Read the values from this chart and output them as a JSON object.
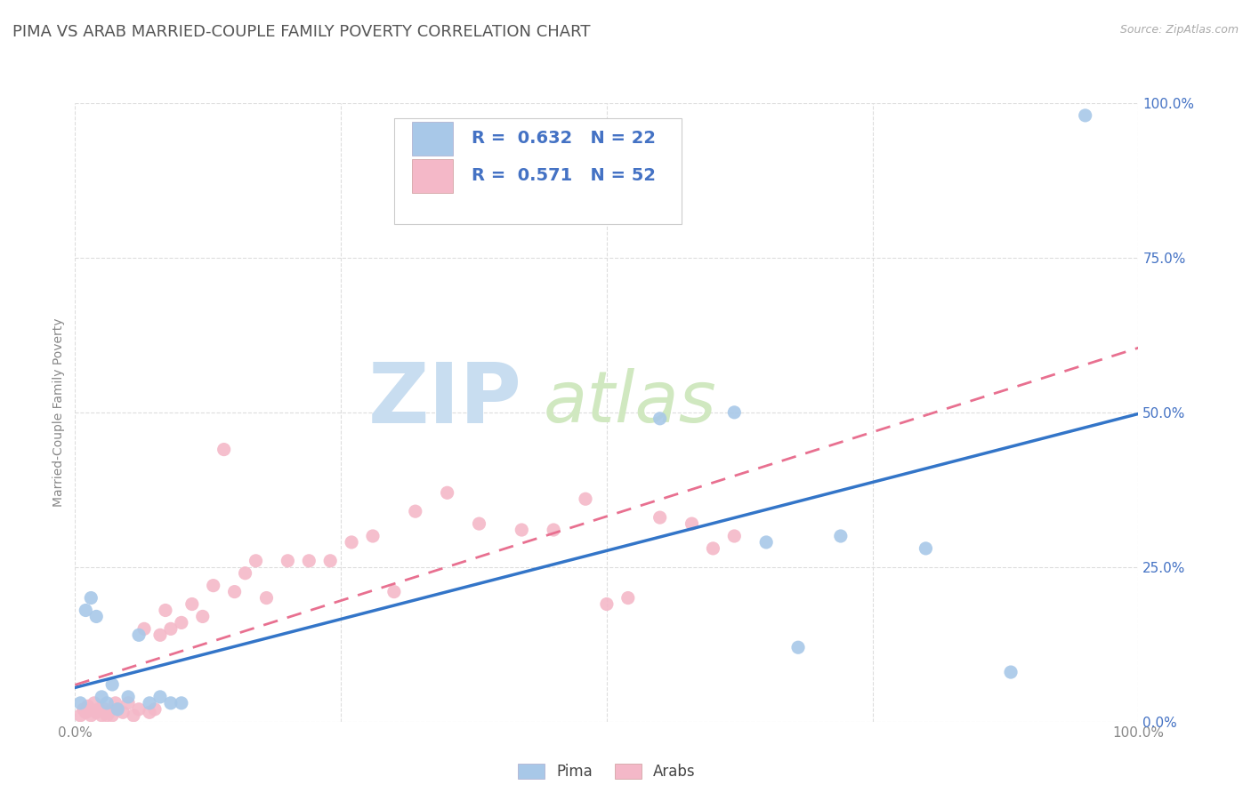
{
  "title": "PIMA VS ARAB MARRIED-COUPLE FAMILY POVERTY CORRELATION CHART",
  "source_text": "Source: ZipAtlas.com",
  "ylabel": "Married-Couple Family Poverty",
  "xlim": [
    0,
    1
  ],
  "ylim": [
    0,
    1
  ],
  "ytick_positions": [
    0.0,
    0.25,
    0.5,
    0.75,
    1.0
  ],
  "ytick_labels": [
    "0.0%",
    "25.0%",
    "50.0%",
    "75.0%",
    "100.0%"
  ],
  "xtick_positions": [
    0.0,
    0.25,
    0.5,
    0.75,
    1.0
  ],
  "xtick_labels": [
    "0.0%",
    "",
    "",
    "",
    "100.0%"
  ],
  "watermark_zip": "ZIP",
  "watermark_atlas": "atlas",
  "pima_color": "#a8c8e8",
  "arab_color": "#f4b8c8",
  "pima_line_color": "#3375c8",
  "arab_line_color": "#e87090",
  "pima_R": 0.632,
  "pima_N": 22,
  "arab_R": 0.571,
  "arab_N": 52,
  "legend_text_color": "#4472c4",
  "pima_legend_color": "#a8c8e8",
  "arab_legend_color": "#f4b8c8",
  "pima_x": [
    0.005,
    0.01,
    0.015,
    0.02,
    0.025,
    0.03,
    0.035,
    0.04,
    0.05,
    0.06,
    0.07,
    0.08,
    0.09,
    0.1,
    0.55,
    0.62,
    0.65,
    0.68,
    0.72,
    0.8,
    0.88,
    0.95
  ],
  "pima_y": [
    0.03,
    0.18,
    0.2,
    0.17,
    0.04,
    0.03,
    0.06,
    0.02,
    0.04,
    0.14,
    0.03,
    0.04,
    0.03,
    0.03,
    0.49,
    0.5,
    0.29,
    0.12,
    0.3,
    0.28,
    0.08,
    0.98
  ],
  "arab_x": [
    0.005,
    0.008,
    0.01,
    0.012,
    0.015,
    0.018,
    0.02,
    0.022,
    0.025,
    0.028,
    0.03,
    0.032,
    0.035,
    0.038,
    0.04,
    0.045,
    0.05,
    0.055,
    0.06,
    0.065,
    0.07,
    0.075,
    0.08,
    0.085,
    0.09,
    0.1,
    0.11,
    0.12,
    0.13,
    0.14,
    0.15,
    0.16,
    0.17,
    0.18,
    0.2,
    0.22,
    0.24,
    0.26,
    0.28,
    0.3,
    0.32,
    0.35,
    0.38,
    0.42,
    0.45,
    0.48,
    0.5,
    0.52,
    0.55,
    0.58,
    0.6,
    0.62
  ],
  "arab_y": [
    0.01,
    0.02,
    0.015,
    0.025,
    0.01,
    0.03,
    0.015,
    0.02,
    0.01,
    0.02,
    0.01,
    0.015,
    0.01,
    0.03,
    0.02,
    0.015,
    0.03,
    0.01,
    0.02,
    0.15,
    0.015,
    0.02,
    0.14,
    0.18,
    0.15,
    0.16,
    0.19,
    0.17,
    0.22,
    0.44,
    0.21,
    0.24,
    0.26,
    0.2,
    0.26,
    0.26,
    0.26,
    0.29,
    0.3,
    0.21,
    0.34,
    0.37,
    0.32,
    0.31,
    0.31,
    0.36,
    0.19,
    0.2,
    0.33,
    0.32,
    0.28,
    0.3
  ],
  "background_color": "#ffffff",
  "grid_color": "#dddddd",
  "title_color": "#555555",
  "title_fontsize": 13,
  "axis_label_fontsize": 10,
  "tick_fontsize": 11,
  "legend_fontsize": 14
}
